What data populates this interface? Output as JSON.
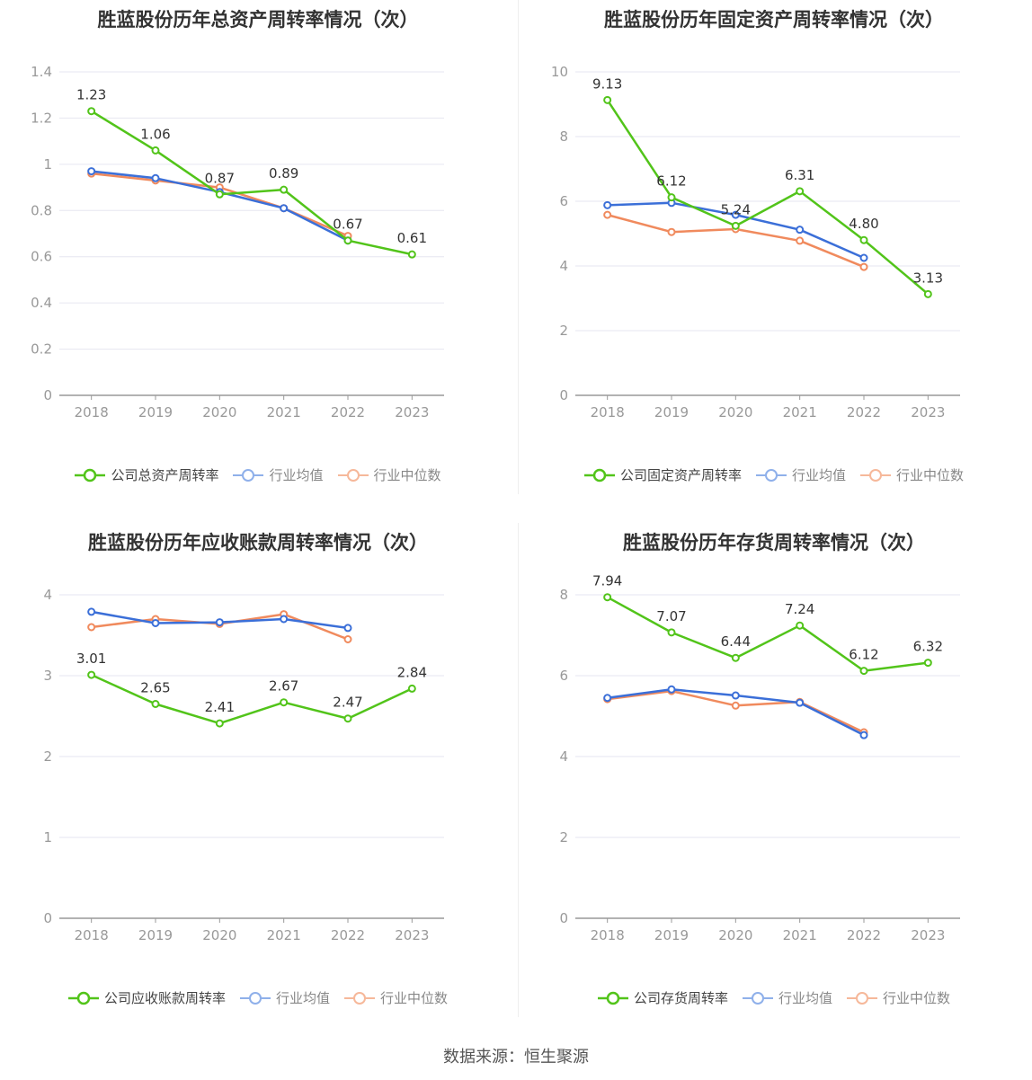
{
  "legend_labels": {
    "industry_avg": "行业均值",
    "industry_median": "行业中位数"
  },
  "colors": {
    "company": "#52c41a",
    "industry_avg": "#3b6fd8",
    "industry_median": "#f08a5d",
    "grid": "#e6e6f0",
    "axis": "#999999"
  },
  "source": "数据来源：恒生聚源",
  "chart_data": [
    {
      "type": "line",
      "title": "胜蓝股份历年总资产周转率情况（次）",
      "categories": [
        "2018",
        "2019",
        "2020",
        "2021",
        "2022",
        "2023"
      ],
      "ylim": [
        0,
        1.4
      ],
      "yticks": [
        0,
        0.2,
        0.4,
        0.6,
        0.8,
        1,
        1.2,
        1.4
      ],
      "grid": true,
      "legend_position": "bottom",
      "series": [
        {
          "name": "公司总资产周转率",
          "values": [
            1.23,
            1.06,
            0.87,
            0.89,
            0.67,
            0.61
          ],
          "labels": [
            "1.23",
            "1.06",
            "0.87",
            "0.89",
            "0.67",
            "0.61"
          ]
        },
        {
          "name": "行业均值",
          "values": [
            0.97,
            0.94,
            0.88,
            0.81,
            0.67,
            null
          ]
        },
        {
          "name": "行业中位数",
          "values": [
            0.96,
            0.93,
            0.9,
            0.81,
            0.69,
            null
          ]
        }
      ]
    },
    {
      "type": "line",
      "title": "胜蓝股份历年固定资产周转率情况（次）",
      "categories": [
        "2018",
        "2019",
        "2020",
        "2021",
        "2022",
        "2023"
      ],
      "ylim": [
        0,
        10
      ],
      "yticks": [
        0,
        2,
        4,
        6,
        8,
        10
      ],
      "grid": true,
      "legend_position": "bottom",
      "series": [
        {
          "name": "公司固定资产周转率",
          "values": [
            9.13,
            6.12,
            5.24,
            6.31,
            4.8,
            3.13
          ],
          "labels": [
            "9.13",
            "6.12",
            "5.24",
            "6.31",
            "4.80",
            "3.13"
          ]
        },
        {
          "name": "行业均值",
          "values": [
            5.88,
            5.95,
            5.58,
            5.12,
            4.25,
            null
          ]
        },
        {
          "name": "行业中位数",
          "values": [
            5.58,
            5.05,
            5.14,
            4.78,
            3.97,
            null
          ]
        }
      ]
    },
    {
      "type": "line",
      "title": "胜蓝股份历年应收账款周转率情况（次）",
      "categories": [
        "2018",
        "2019",
        "2020",
        "2021",
        "2022",
        "2023"
      ],
      "ylim": [
        0,
        4
      ],
      "yticks": [
        0,
        1,
        2,
        3,
        4
      ],
      "grid": true,
      "legend_position": "bottom",
      "series": [
        {
          "name": "公司应收账款周转率",
          "values": [
            3.01,
            2.65,
            2.41,
            2.67,
            2.47,
            2.84
          ],
          "labels": [
            "3.01",
            "2.65",
            "2.41",
            "2.67",
            "2.47",
            "2.84"
          ]
        },
        {
          "name": "行业均值",
          "values": [
            3.79,
            3.65,
            3.66,
            3.7,
            3.59,
            null
          ]
        },
        {
          "name": "行业中位数",
          "values": [
            3.6,
            3.7,
            3.64,
            3.76,
            3.45,
            null
          ]
        }
      ]
    },
    {
      "type": "line",
      "title": "胜蓝股份历年存货周转率情况（次）",
      "categories": [
        "2018",
        "2019",
        "2020",
        "2021",
        "2022",
        "2023"
      ],
      "ylim": [
        0,
        8
      ],
      "yticks": [
        0,
        2,
        4,
        6,
        8
      ],
      "grid": true,
      "legend_position": "bottom",
      "series": [
        {
          "name": "公司存货周转率",
          "values": [
            7.94,
            7.07,
            6.44,
            7.24,
            6.12,
            6.32
          ],
          "labels": [
            "7.94",
            "7.07",
            "6.44",
            "7.24",
            "6.12",
            "6.32"
          ]
        },
        {
          "name": "行业均值",
          "values": [
            5.45,
            5.66,
            5.51,
            5.33,
            4.53,
            null
          ]
        },
        {
          "name": "行业中位数",
          "values": [
            5.42,
            5.62,
            5.26,
            5.35,
            4.6,
            null
          ]
        }
      ]
    }
  ]
}
